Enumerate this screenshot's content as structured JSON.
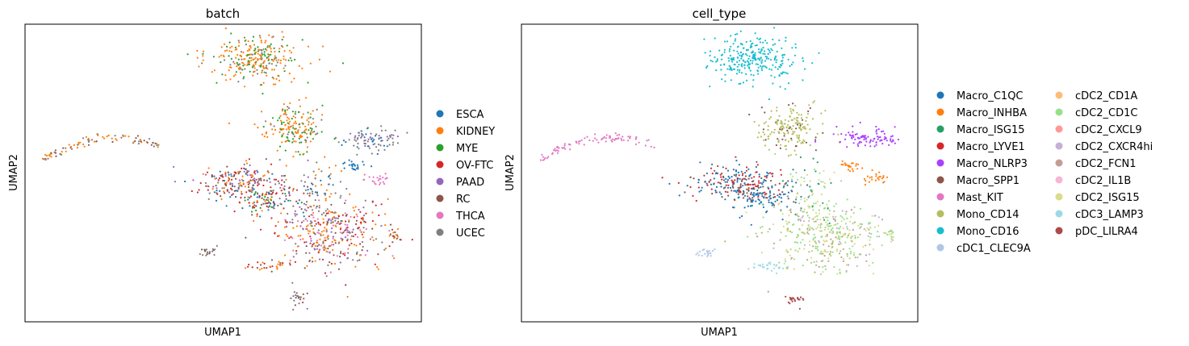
{
  "chart_data": [
    {
      "type": "scatter",
      "title": "batch",
      "xlabel": "UMAP1",
      "ylabel": "UMAP2",
      "legend_position": "right",
      "grid": false,
      "categories": [
        {
          "label": "ESCA",
          "color": "#1f77b4"
        },
        {
          "label": "KIDNEY",
          "color": "#ff7f0e"
        },
        {
          "label": "MYE",
          "color": "#2ca02c"
        },
        {
          "label": "OV-FTC",
          "color": "#d62728"
        },
        {
          "label": "PAAD",
          "color": "#9467bd"
        },
        {
          "label": "RC",
          "color": "#8c564b"
        },
        {
          "label": "THCA",
          "color": "#e377c2"
        },
        {
          "label": "UCEC",
          "color": "#7f7f7f"
        }
      ]
    },
    {
      "type": "scatter",
      "title": "cell_type",
      "xlabel": "UMAP1",
      "ylabel": "UMAP2",
      "legend_position": "right",
      "grid": false,
      "categories": [
        {
          "label": "Macro_C1QC",
          "color": "#1f77b4"
        },
        {
          "label": "Macro_INHBA",
          "color": "#ff7f0e"
        },
        {
          "label": "Macro_ISG15",
          "color": "#279e68"
        },
        {
          "label": "Macro_LYVE1",
          "color": "#d62728"
        },
        {
          "label": "Macro_NLRP3",
          "color": "#aa40fc"
        },
        {
          "label": "Macro_SPP1",
          "color": "#8c564b"
        },
        {
          "label": "Mast_KIT",
          "color": "#e377c2"
        },
        {
          "label": "Mono_CD14",
          "color": "#b5bd61"
        },
        {
          "label": "Mono_CD16",
          "color": "#17becf"
        },
        {
          "label": "cDC1_CLEC9A",
          "color": "#aec7e8"
        },
        {
          "label": "cDC2_CD1A",
          "color": "#ffbb78"
        },
        {
          "label": "cDC2_CD1C",
          "color": "#98df8a"
        },
        {
          "label": "cDC2_CXCL9",
          "color": "#ff9896"
        },
        {
          "label": "cDC2_CXCR4hi",
          "color": "#c5b0d5"
        },
        {
          "label": "cDC2_FCN1",
          "color": "#c49c94"
        },
        {
          "label": "cDC2_IL1B",
          "color": "#f7b6d2"
        },
        {
          "label": "cDC2_ISG15",
          "color": "#dbdb8d"
        },
        {
          "label": "cDC3_LAMP3",
          "color": "#9edae5"
        },
        {
          "label": "pDC_LILRA4",
          "color": "#ad494a"
        }
      ]
    }
  ]
}
